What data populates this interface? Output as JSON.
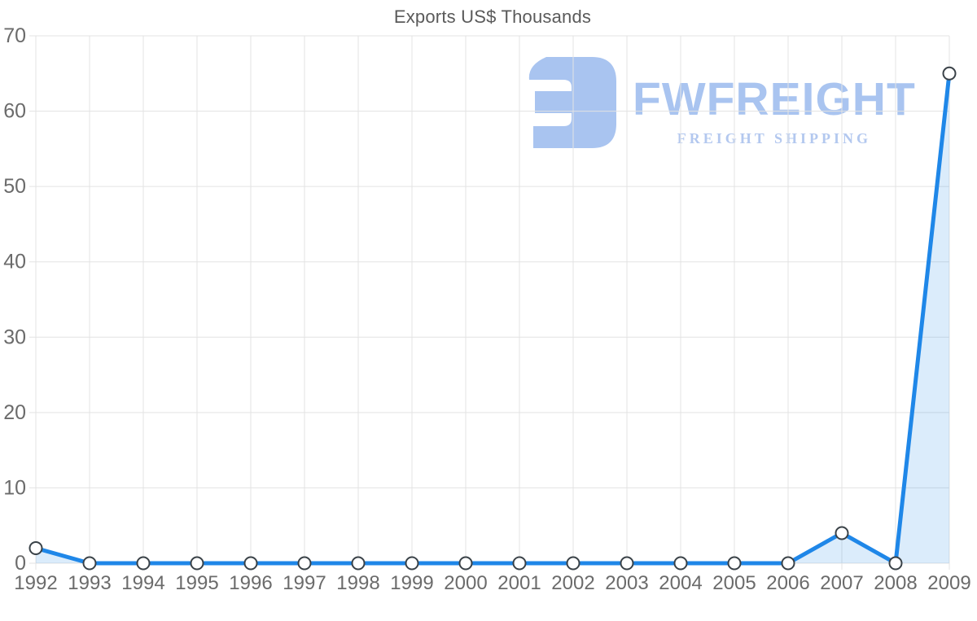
{
  "title": "Exports US$ Thousands",
  "watermark": {
    "brand": "FWFREIGHT",
    "tagline": "FREIGHT SHIPPING",
    "logo_color": "#a9c4f0",
    "tagline_color": "#b3c8ef"
  },
  "chart_data": {
    "type": "area",
    "title": "Exports US$ Thousands",
    "categories": [
      "1992",
      "1993",
      "1994",
      "1995",
      "1996",
      "1997",
      "1998",
      "1999",
      "2000",
      "2001",
      "2002",
      "2003",
      "2004",
      "2005",
      "2006",
      "2007",
      "2008",
      "2009"
    ],
    "values": [
      2,
      0,
      0,
      0,
      0,
      0,
      0,
      0,
      0,
      0,
      0,
      0,
      0,
      0,
      0,
      4,
      0,
      65
    ],
    "xlabel": "",
    "ylabel": "",
    "ylim": [
      0,
      70
    ],
    "y_ticks": [
      0,
      10,
      20,
      30,
      40,
      50,
      60,
      70
    ],
    "grid": true,
    "legend": "none",
    "line_color": "#1f87e8",
    "fill_color": "rgba(31,135,232,0.16)",
    "marker_fill": "#ffffff",
    "marker_stroke": "#3a4248",
    "grid_color": "#e3e3e3",
    "axis_label_color": "#6b6b6b",
    "title_color": "#5a5a5a"
  }
}
